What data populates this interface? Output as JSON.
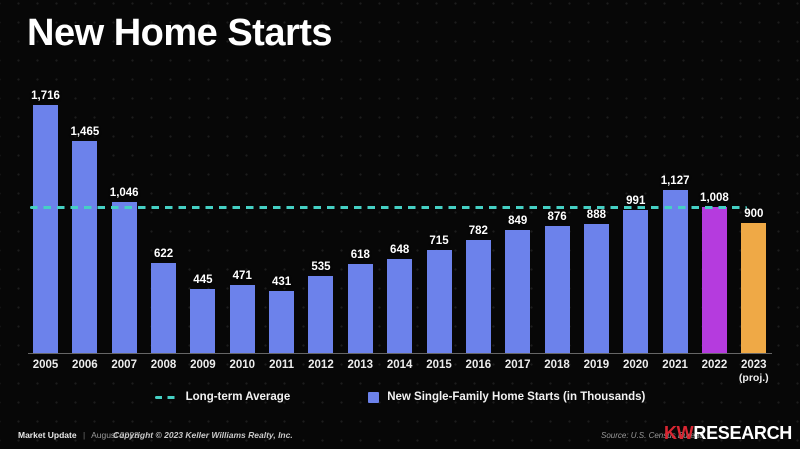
{
  "title": "New Home Starts",
  "chart_data": {
    "type": "bar",
    "title": "New Home Starts",
    "categories": [
      "2005",
      "2006",
      "2007",
      "2008",
      "2009",
      "2010",
      "2011",
      "2012",
      "2013",
      "2014",
      "2015",
      "2016",
      "2017",
      "2018",
      "2019",
      "2020",
      "2021",
      "2022",
      "2023"
    ],
    "category_suffixes": {
      "2023": "(proj.)"
    },
    "values": [
      1716,
      1465,
      1046,
      622,
      445,
      471,
      431,
      535,
      618,
      648,
      715,
      782,
      849,
      876,
      888,
      991,
      1127,
      1008,
      900
    ],
    "value_labels": [
      "1,716",
      "1,465",
      "1,046",
      "622",
      "445",
      "471",
      "431",
      "535",
      "618",
      "648",
      "715",
      "782",
      "849",
      "876",
      "888",
      "991",
      "1,127",
      "1,008",
      "900"
    ],
    "bar_colors": [
      "#6C82EB",
      "#6C82EB",
      "#6C82EB",
      "#6C82EB",
      "#6C82EB",
      "#6C82EB",
      "#6C82EB",
      "#6C82EB",
      "#6C82EB",
      "#6C82EB",
      "#6C82EB",
      "#6C82EB",
      "#6C82EB",
      "#6C82EB",
      "#6C82EB",
      "#6C82EB",
      "#6C82EB",
      "#B53BDE",
      "#EFA946"
    ],
    "long_term_average": 1005,
    "series_name": "New Single-Family Home Starts (in Thousands)",
    "average_series_name": "Long-term Average",
    "xlabel": "",
    "ylabel": "",
    "ylim": [
      0,
      1716
    ],
    "grid": false,
    "legend_position": "bottom"
  },
  "footer": {
    "brand": "Market Update",
    "separator": "|",
    "date": "August 2023",
    "copyright": "Copyright © 2023 Keller Williams Realty, Inc.",
    "source": "Source: U.S. Census Bureau",
    "logo_kw": "KW",
    "logo_research": "RESEARCH"
  },
  "colors": {
    "background": "#070707",
    "bar_blue": "#6C82EB",
    "bar_magenta": "#B53BDE",
    "bar_orange": "#EFA946",
    "average_teal": "#45D0C4",
    "kw_red": "#D92632"
  }
}
